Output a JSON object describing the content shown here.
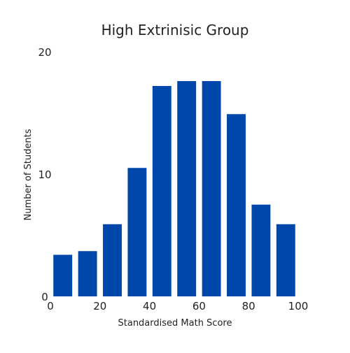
{
  "chart_data": {
    "type": "bar",
    "title": "High Extrinisic Group",
    "xlabel": "Standardised Math Score",
    "ylabel": "Number of Students",
    "x_ticks": [
      "0",
      "20",
      "40",
      "60",
      "80",
      "100"
    ],
    "y_ticks": [
      "0",
      "10",
      "20"
    ],
    "xlim": [
      0,
      100
    ],
    "ylim": [
      0,
      20
    ],
    "bin_centers": [
      5,
      15,
      25,
      35,
      45,
      55,
      65,
      75,
      85,
      95
    ],
    "values": [
      3.4,
      3.7,
      5.9,
      10.5,
      17.2,
      17.6,
      17.6,
      14.9,
      7.5,
      5.9
    ],
    "bar_color": "#0047AB",
    "grid": false,
    "legend": "none"
  }
}
